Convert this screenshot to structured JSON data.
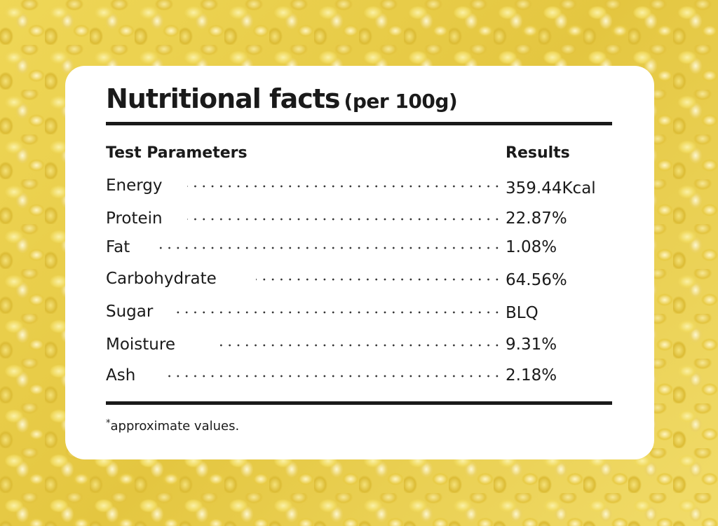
{
  "title": {
    "main": "Nutritional facts",
    "sub": "(per 100g)"
  },
  "table": {
    "header_param": "Test Parameters",
    "header_result": "Results",
    "rows": [
      {
        "label": "Energy",
        "value": "359.44Kcal"
      },
      {
        "label": "Protein",
        "value": "22.87%"
      },
      {
        "label": "Fat",
        "value": "1.08%"
      },
      {
        "label": "Carbohydrate",
        "value": "64.56%"
      },
      {
        "label": "Sugar",
        "value": "BLQ"
      },
      {
        "label": "Moisture",
        "value": "9.31%"
      },
      {
        "label": "Ash",
        "value": "2.18%"
      }
    ]
  },
  "footnote": {
    "mark": "*",
    "text": "approximate values."
  },
  "colors": {
    "card": "#ffffff",
    "text": "#1a1a1a",
    "background": "#e9cf4e"
  }
}
